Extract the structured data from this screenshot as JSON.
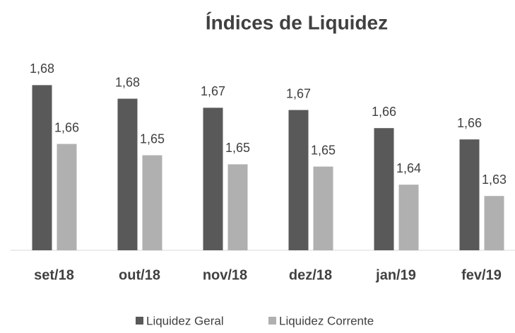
{
  "chart_data": {
    "type": "bar",
    "title": "Índices de Liquidez",
    "categories": [
      "set/18",
      "out/18",
      "nov/18",
      "dez/18",
      "jan/19",
      "fev/19"
    ],
    "series": [
      {
        "name": "Liquidez Geral",
        "color": "#595959",
        "values": [
          1.683,
          1.677,
          1.673,
          1.672,
          1.664,
          1.659
        ],
        "value_labels": [
          "1,68",
          "1,68",
          "1,67",
          "1,67",
          "1,66",
          "1,66"
        ]
      },
      {
        "name": "Liquidez Corrente",
        "color": "#b0b0b0",
        "values": [
          1.657,
          1.652,
          1.648,
          1.647,
          1.639,
          1.634
        ],
        "value_labels": [
          "1,66",
          "1,65",
          "1,65",
          "1,65",
          "1,64",
          "1,63"
        ]
      }
    ],
    "ylim": [
      1.61,
      1.69
    ],
    "legend": "bottom"
  }
}
